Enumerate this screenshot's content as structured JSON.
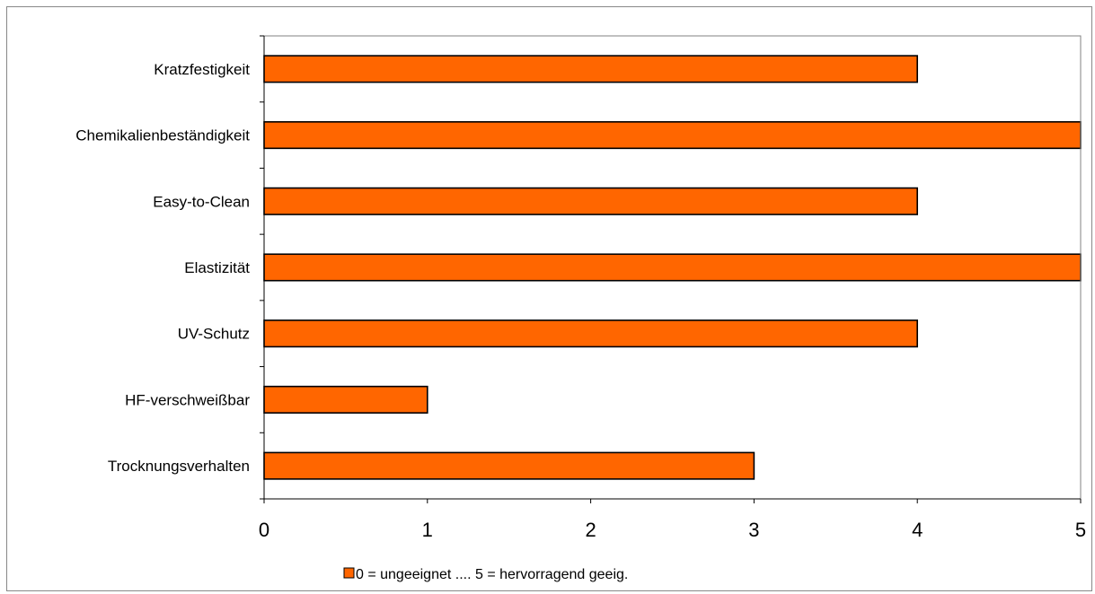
{
  "chart_data": {
    "type": "bar",
    "orientation": "horizontal",
    "categories": [
      "Kratzfestigkeit",
      "Chemikalienbeständigkeit",
      "Easy-to-Clean",
      "Elastizität",
      "UV-Schutz",
      "HF-verschweißbar",
      "Trocknungsverhalten"
    ],
    "series": [
      {
        "name": "0 = ungeeignet .... 5 = hervorragend geeig.",
        "values": [
          4,
          5,
          4,
          5,
          4,
          1,
          3
        ],
        "color": "#FF6600"
      }
    ],
    "xlim": [
      0,
      5
    ],
    "xticks": [
      "0",
      "1",
      "2",
      "3",
      "4",
      "5"
    ],
    "grid": false,
    "legend": "bottom",
    "colors": {
      "bar_fill": "#FF6600",
      "bar_stroke": "#000000",
      "axis": "#000000"
    }
  }
}
